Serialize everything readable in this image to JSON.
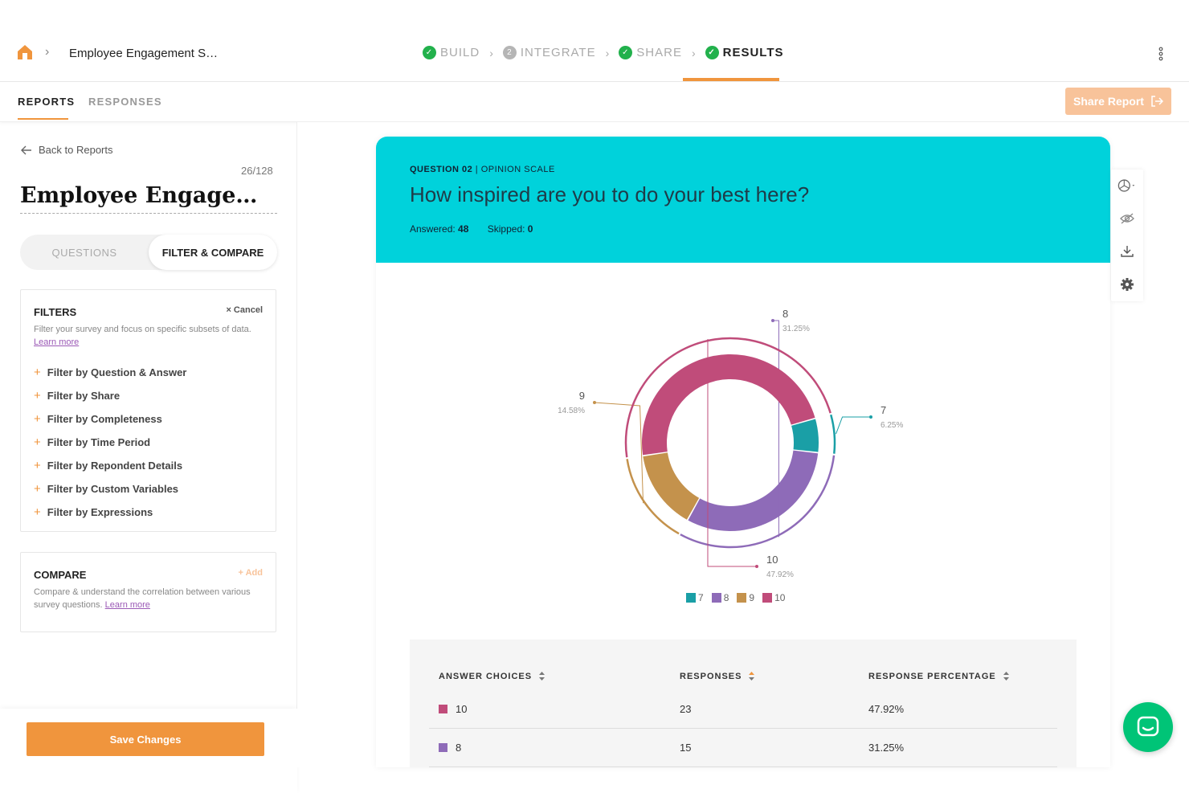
{
  "header": {
    "breadcrumb_title": "Employee Engagement S…",
    "steps": [
      {
        "label": "BUILD",
        "state": "done"
      },
      {
        "label": "INTEGRATE",
        "state": "pending",
        "number": "2"
      },
      {
        "label": "SHARE",
        "state": "done"
      },
      {
        "label": "RESULTS",
        "state": "active"
      }
    ]
  },
  "subnav": {
    "tabs": [
      "REPORTS",
      "RESPONSES"
    ],
    "share_label": "Share Report"
  },
  "sidebar": {
    "back_label": "Back to Reports",
    "counter": "26/128",
    "survey_title": "Employee Engagemen...",
    "segment": {
      "questions": "QUESTIONS",
      "filter_compare": "FILTER & COMPARE"
    },
    "filters": {
      "title": "FILTERS",
      "cancel": "Cancel",
      "desc": "Filter your survey and focus on specific subsets of data.",
      "learn_more": "Learn more",
      "items": [
        "Filter by Question & Answer",
        "Filter by Share",
        "Filter by Completeness",
        "Filter by Time Period",
        "Filter by Repondent Details",
        "Filter by Custom Variables",
        "Filter by Expressions"
      ]
    },
    "compare": {
      "title": "COMPARE",
      "add": "Add",
      "desc": "Compare & understand the correlation between various survey questions.",
      "learn_more": "Learn more"
    },
    "save_label": "Save Changes"
  },
  "question": {
    "number_label": "QUESTION 02",
    "type_label": "OPINION SCALE",
    "text": "How inspired are you to do your best here?",
    "answered_label": "Answered:",
    "answered": "48",
    "skipped_label": "Skipped:",
    "skipped": "0"
  },
  "chart_data": {
    "type": "pie",
    "variant": "donut",
    "slices": [
      {
        "label": "7",
        "value": 6.25,
        "percent_label": "6.25%",
        "color": "#1a9fa6"
      },
      {
        "label": "8",
        "value": 31.25,
        "percent_label": "31.25%",
        "color": "#8e6bb8"
      },
      {
        "label": "9",
        "value": 14.58,
        "percent_label": "14.58%",
        "color": "#c4924c"
      },
      {
        "label": "10",
        "value": 47.92,
        "percent_label": "47.92%",
        "color": "#c04c7a"
      }
    ],
    "legend": [
      "7",
      "8",
      "9",
      "10"
    ],
    "legend_placement": "bottom"
  },
  "table": {
    "headers": [
      "ANSWER CHOICES",
      "RESPONSES",
      "RESPONSE PERCENTAGE"
    ],
    "rows": [
      {
        "choice": "10",
        "responses": "23",
        "percentage": "47.92%",
        "color": "#c04c7a"
      },
      {
        "choice": "8",
        "responses": "15",
        "percentage": "31.25%",
        "color": "#8e6bb8"
      }
    ]
  },
  "colors": {
    "accent": "#f0953d",
    "header_bg": "#00d2db",
    "success": "#22b14c",
    "chat": "#00c477"
  }
}
